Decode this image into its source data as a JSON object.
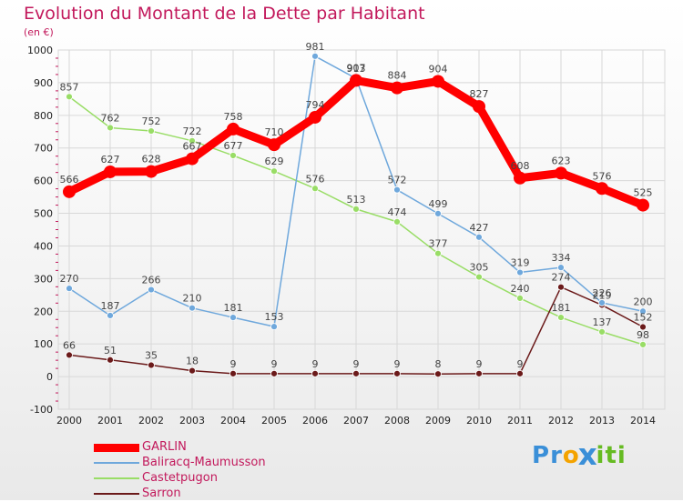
{
  "chart_data": {
    "type": "line",
    "title": "Evolution du Montant de la Dette par Habitant",
    "subtitle": "(en €)",
    "x": [
      "2000",
      "2001",
      "2002",
      "2003",
      "2004",
      "2005",
      "2006",
      "2007",
      "2008",
      "2009",
      "2010",
      "2011",
      "2012",
      "2013",
      "2014"
    ],
    "ylim": [
      -100,
      1000
    ],
    "yticks": [
      "-100",
      "0",
      "100",
      "200",
      "300",
      "400",
      "500",
      "600",
      "700",
      "800",
      "900",
      "1000"
    ],
    "grid": true,
    "legend_position": "bottom-left",
    "series": [
      {
        "name": "GARLIN",
        "color": "#ff0000",
        "values": [
          566,
          627,
          628,
          667,
          758,
          710,
          794,
          907,
          884,
          904,
          827,
          608,
          623,
          576,
          525
        ]
      },
      {
        "name": "Baliracq-Maumusson",
        "color": "#6fa8dc",
        "values": [
          270,
          187,
          266,
          210,
          181,
          153,
          981,
          913,
          572,
          499,
          427,
          319,
          334,
          226,
          200
        ]
      },
      {
        "name": "Castetpugon",
        "color": "#99dd66",
        "values": [
          857,
          762,
          752,
          722,
          677,
          629,
          576,
          513,
          474,
          377,
          305,
          240,
          181,
          137,
          98
        ]
      },
      {
        "name": "Sarron",
        "color": "#6b1a1a",
        "values": [
          66,
          51,
          35,
          18,
          9,
          9,
          9,
          9,
          9,
          8,
          9,
          9,
          274,
          219,
          152
        ]
      }
    ]
  },
  "logo": {
    "letters": [
      "P",
      "r",
      "o",
      "x",
      "i",
      "t",
      "i"
    ],
    "colors": [
      "#3a8fd8",
      "#3a8fd8",
      "#f4a300",
      "#3a8fd8",
      "#66bb22",
      "#66bb22",
      "#66bb22"
    ]
  }
}
